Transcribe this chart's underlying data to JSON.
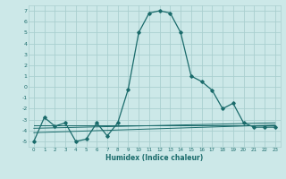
{
  "xlabel": "Humidex (Indice chaleur)",
  "ylabel": "",
  "bg_color": "#cce8e8",
  "grid_color": "#aacfcf",
  "line_color": "#1a6b6b",
  "xlim": [
    -0.5,
    23.5
  ],
  "ylim": [
    -5.5,
    7.5
  ],
  "xticks": [
    0,
    1,
    2,
    3,
    4,
    5,
    6,
    7,
    8,
    9,
    10,
    11,
    12,
    13,
    14,
    15,
    16,
    17,
    18,
    19,
    20,
    21,
    22,
    23
  ],
  "yticks": [
    -5,
    -4,
    -3,
    -2,
    -1,
    0,
    1,
    2,
    3,
    4,
    5,
    6,
    7
  ],
  "line1_x": [
    0,
    1,
    2,
    3,
    4,
    5,
    6,
    7,
    8,
    9,
    10,
    11,
    12,
    13,
    14,
    15,
    16,
    17,
    18,
    19,
    20,
    21,
    22,
    23
  ],
  "line1_y": [
    -5.0,
    -2.8,
    -3.6,
    -3.3,
    -5.0,
    -4.8,
    -3.3,
    -4.5,
    -3.3,
    -0.2,
    5.0,
    6.8,
    7.0,
    6.8,
    5.0,
    1.0,
    0.5,
    -0.3,
    -2.0,
    -1.5,
    -3.3,
    -3.7,
    -3.7,
    -3.7
  ],
  "line2_x": [
    0,
    23
  ],
  "line2_y": [
    -3.5,
    -3.5
  ],
  "line3_x": [
    0,
    23
  ],
  "line3_y": [
    -3.8,
    -3.3
  ],
  "line4_x": [
    0,
    23
  ],
  "line4_y": [
    -4.2,
    -3.5
  ]
}
